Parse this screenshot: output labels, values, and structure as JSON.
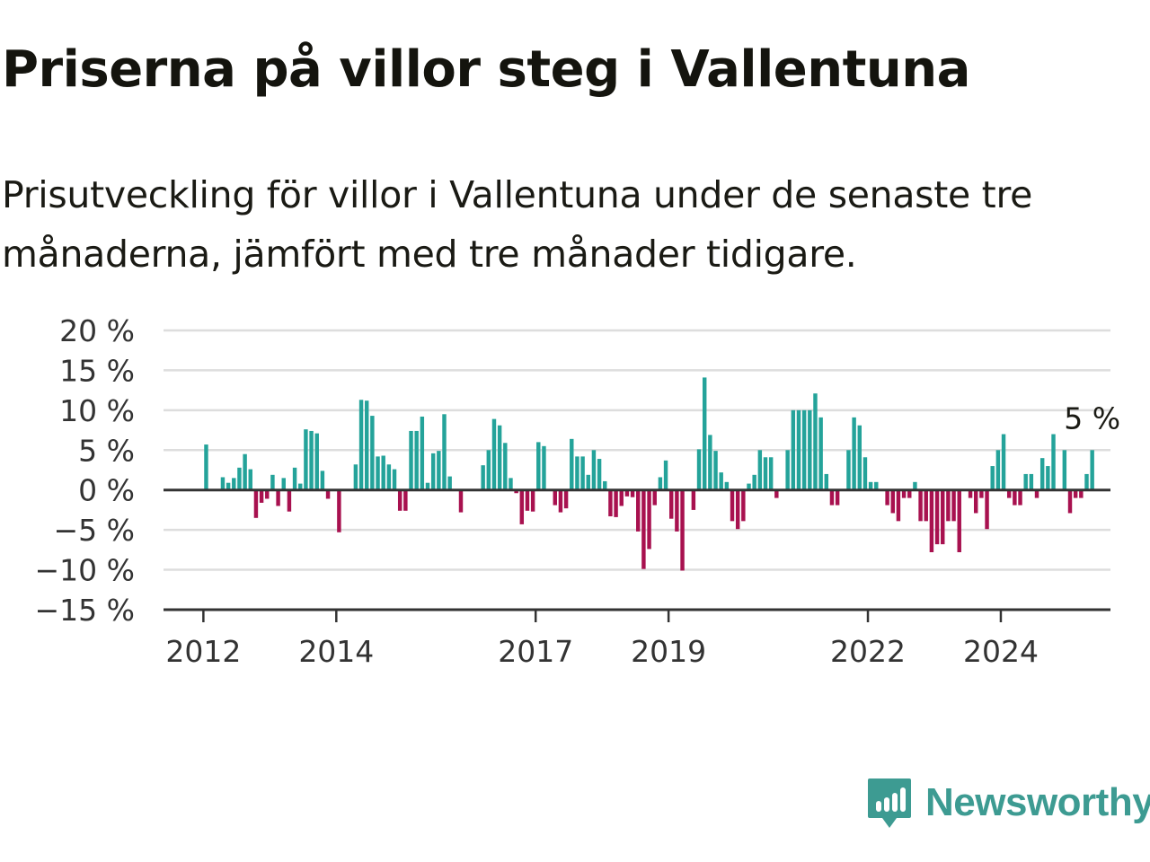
{
  "title": "Priserna på villor steg i Vallentuna",
  "subtitle": "Prisutveckling för villor i Vallentuna under de senaste tre månaderna, jämfört med tre månader tidigare.",
  "brand": {
    "name": "Newsworthy",
    "color": "#3d9b92",
    "icon": "newsworthy-logo-icon"
  },
  "colors": {
    "positive": "#24a39a",
    "negative": "#a8114f",
    "grid": "#dddddd",
    "axis": "#333333"
  },
  "chart_data": {
    "type": "bar",
    "ylim": [
      -15,
      20
    ],
    "yticks": [
      20,
      15,
      10,
      5,
      0,
      -5,
      -10,
      -15
    ],
    "ytick_labels": [
      "20 %",
      "15 %",
      "10 %",
      "5 %",
      "0 %",
      "−5 %",
      "−10 %",
      "−15 %"
    ],
    "xticks": [
      {
        "label": "2012",
        "x": 2012.0
      },
      {
        "label": "2014",
        "x": 2014.0
      },
      {
        "label": "2017",
        "x": 2017.0
      },
      {
        "label": "2019",
        "x": 2019.0
      },
      {
        "label": "2022",
        "x": 2022.0
      },
      {
        "label": "2024",
        "x": 2024.0
      }
    ],
    "xlim": [
      2011.4,
      2025.65
    ],
    "grid": true,
    "end_label": "5 %",
    "x_start": "2012-01",
    "x_step_months": 1,
    "values": [
      5.7,
      0,
      0,
      1.6,
      0.9,
      1.5,
      2.8,
      4.5,
      2.6,
      -3.5,
      -1.6,
      -1.1,
      1.9,
      -2.0,
      1.5,
      -2.7,
      2.8,
      0.8,
      7.6,
      7.4,
      7.1,
      2.4,
      -1.1,
      0,
      -5.3,
      0,
      0,
      3.2,
      11.3,
      11.2,
      9.3,
      4.2,
      4.3,
      3.2,
      2.6,
      -2.6,
      -2.6,
      7.4,
      7.4,
      9.2,
      0.9,
      4.6,
      4.9,
      9.5,
      1.7,
      0,
      -2.8,
      0,
      0,
      0,
      3.1,
      5.0,
      8.9,
      8.1,
      5.9,
      1.5,
      -0.4,
      -4.3,
      -2.6,
      -2.7,
      6.0,
      5.5,
      0,
      -1.9,
      -2.8,
      -2.3,
      6.4,
      4.2,
      4.2,
      1.9,
      5.0,
      3.9,
      1.1,
      -3.3,
      -3.4,
      -2.0,
      -0.8,
      -0.9,
      -5.2,
      -9.9,
      -7.4,
      -1.9,
      1.6,
      3.7,
      -3.6,
      -5.2,
      -10.1,
      0,
      -2.5,
      5.1,
      14.1,
      6.9,
      4.9,
      2.2,
      1.0,
      -3.9,
      -4.9,
      -3.9,
      0.8,
      1.9,
      5.0,
      4.1,
      4.1,
      -1.0,
      0,
      5.0,
      10.0,
      10.0,
      10.0,
      10.0,
      12.1,
      9.1,
      2.0,
      -1.9,
      -1.9,
      0,
      5.0,
      9.1,
      8.1,
      4.1,
      1.0,
      1.0,
      0,
      -1.9,
      -2.9,
      -3.9,
      -1.0,
      -1.0,
      1.0,
      -3.9,
      -3.9,
      -7.8,
      -6.8,
      -6.8,
      -3.9,
      -3.9,
      -7.8,
      0,
      -1.0,
      -2.9,
      -1.0,
      -4.9,
      3.0,
      5.0,
      7.0,
      -1.0,
      -1.9,
      -1.9,
      2.0,
      2.0,
      -1.0,
      4.0,
      3.0,
      7.0,
      0,
      5.0,
      -2.9,
      -1.0,
      -1.0,
      2.0,
      5.0
    ]
  }
}
